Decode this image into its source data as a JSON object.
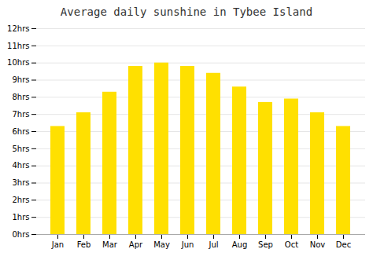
{
  "chart_data": {
    "type": "bar",
    "title": "Average daily sunshine in Tybee Island",
    "categories": [
      "Jan",
      "Feb",
      "Mar",
      "Apr",
      "May",
      "Jun",
      "Jul",
      "Aug",
      "Sep",
      "Oct",
      "Nov",
      "Dec"
    ],
    "values": [
      6.3,
      7.1,
      8.3,
      9.8,
      10.0,
      9.8,
      9.4,
      8.6,
      7.7,
      7.9,
      7.1,
      6.3
    ],
    "color": "#FFE000",
    "ylim": [
      0,
      12
    ],
    "yticks": [
      {
        "value": 0,
        "label": "0hrs"
      },
      {
        "value": 1,
        "label": "1hrs"
      },
      {
        "value": 2,
        "label": "2hrs"
      },
      {
        "value": 3,
        "label": "3hrs"
      },
      {
        "value": 4,
        "label": "4hrs"
      },
      {
        "value": 5,
        "label": "5hrs"
      },
      {
        "value": 6,
        "label": "6hrs"
      },
      {
        "value": 7,
        "label": "7hrs"
      },
      {
        "value": 8,
        "label": "8hrs"
      },
      {
        "value": 9,
        "label": "9hrs"
      },
      {
        "value": 10,
        "label": "10hrs"
      },
      {
        "value": 11,
        "label": "11hrs"
      },
      {
        "value": 12,
        "label": "12hrs"
      }
    ],
    "grid": true
  }
}
